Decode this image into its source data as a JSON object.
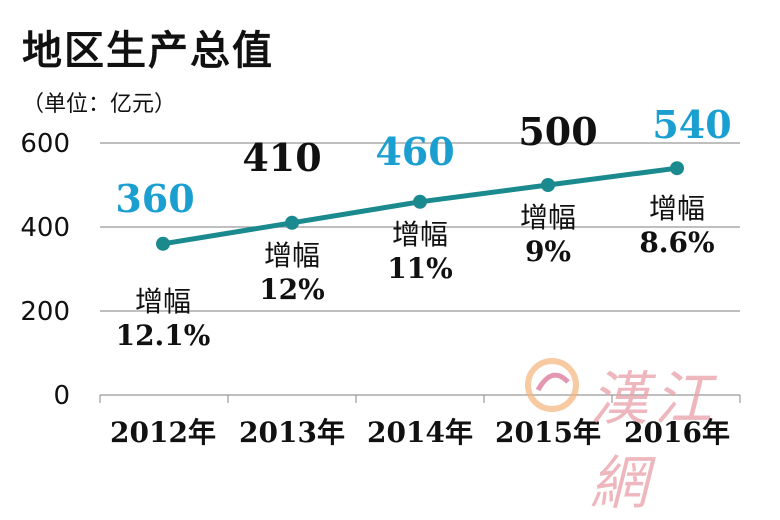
{
  "watermark": {
    "text": "漢江網"
  },
  "chart_data": {
    "type": "line",
    "title": "地区生产总值",
    "subtitle": "（单位：亿元）",
    "categories": [
      "2012年",
      "2013年",
      "2014年",
      "2015年",
      "2016年"
    ],
    "values": [
      360,
      410,
      460,
      500,
      540
    ],
    "value_colors": [
      "#1a9fd0",
      "#111111",
      "#1a9fd0",
      "#111111",
      "#1a9fd0"
    ],
    "growth_label": "增幅",
    "growth": [
      "12.1%",
      "12%",
      "11%",
      "9%",
      "8.6%"
    ],
    "ylim": [
      0,
      600
    ],
    "yticks": [
      0,
      200,
      400,
      600
    ],
    "line_color": "#1a8a8e",
    "grid": true
  }
}
